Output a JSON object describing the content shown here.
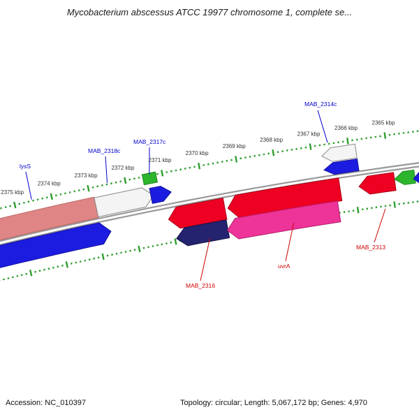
{
  "title": "Mycobacterium abscessus ATCC 19977 chromosome 1, complete se...",
  "status_bar": {
    "accession_label": "Accession: NC_010397",
    "topology_label": "Topology: circular; Length: 5,067,172 bp; Genes: 4,970"
  },
  "chart_data": {
    "type": "genome_map_arc",
    "unit": "kbp",
    "visible_range_kbp": [
      2364.3,
      2376.6
    ],
    "backbone_color": "#999999",
    "ruler": {
      "tick_color": "#2f9e2f",
      "major_tick_interval_kbp": 1,
      "minor_tick_interval_kbp": 0.125,
      "tick_label_suffix": " kbp",
      "labeled_ticks_kbp": [
        2365,
        2366,
        2367,
        2368,
        2369,
        2370,
        2371,
        2372,
        2373,
        2374,
        2375
      ]
    },
    "label_colors": {
      "forward": "#0000cc",
      "reverse": "#cc0000"
    },
    "features": [
      {
        "id": "lysS",
        "label": "lysS",
        "label_color": "#0000cc",
        "start_kbp": 2376.64,
        "end_kbp": 2372.9,
        "direction": "left",
        "offset": 19,
        "thickness": 30,
        "fill": "#e08585",
        "stroke": "#bb6666"
      },
      {
        "id": "blue_cds_left",
        "start_kbp": 2376.64,
        "end_kbp": 2372.65,
        "direction": "right",
        "offset": -19,
        "thickness": 31,
        "fill": "#1c1ce0",
        "stroke": "#12129e"
      },
      {
        "id": "MAB_2318c",
        "label": "MAB_2318c",
        "label_color": "#0000cc",
        "start_kbp": 2372.9,
        "end_kbp": 2371.34,
        "direction": "right",
        "offset": 19,
        "thickness": 28,
        "fill": "#f4f4f4",
        "stroke": "#8a8a8a"
      },
      {
        "id": "green_block_left",
        "start_kbp": 2371.53,
        "end_kbp": 2371.17,
        "direction": "none",
        "offset": 44,
        "thickness": 15,
        "fill": "#2db52d",
        "stroke": "#1d8a1d"
      },
      {
        "id": "MAB_2317c",
        "label": "MAB_2317c",
        "label_color": "#0000cc",
        "start_kbp": 2371.41,
        "end_kbp": 2370.86,
        "direction": "right",
        "offset": 19,
        "thickness": 22,
        "fill": "#1c1ce0",
        "stroke": "#12129e"
      },
      {
        "id": "red_cds_a",
        "start_kbp": 2371.07,
        "end_kbp": 2369.53,
        "direction": "left",
        "offset": -19,
        "thickness": 31,
        "fill": "#ee0022",
        "stroke": "#a80016"
      },
      {
        "id": "MAB_2316",
        "label": "MAB_2316",
        "label_color": "#cc0000",
        "start_kbp": 2370.96,
        "end_kbp": 2369.55,
        "direction": "left",
        "offset": -48,
        "thickness": 26,
        "fill": "#232370",
        "stroke": "#15154a"
      },
      {
        "id": "red_cds_b",
        "start_kbp": 2369.45,
        "end_kbp": 2366.39,
        "direction": "left",
        "offset": -19,
        "thickness": 33,
        "fill": "#ee0022",
        "stroke": "#a80016"
      },
      {
        "id": "uvrA",
        "label": "uvrA",
        "label_color": "#cc0000",
        "start_kbp": 2369.57,
        "end_kbp": 2366.51,
        "direction": "left",
        "offset": -50,
        "thickness": 30,
        "fill": "#ee3399",
        "stroke": "#b3216e"
      },
      {
        "id": "MAB_2314c",
        "label": "MAB_2314c",
        "label_color": "#0000cc",
        "start_kbp": 2366.74,
        "end_kbp": 2365.82,
        "direction": "left",
        "offset": 32,
        "thickness": 20,
        "fill": "#f4f4f4",
        "stroke": "#8a8a8a"
      },
      {
        "id": "blue_cds_mid",
        "start_kbp": 2366.74,
        "end_kbp": 2365.82,
        "direction": "left",
        "offset": 12,
        "thickness": 17,
        "fill": "#1c1ce0",
        "stroke": "#12129e"
      },
      {
        "id": "MAB_2313",
        "label": "MAB_2313",
        "label_color": "#cc0000",
        "start_kbp": 2365.88,
        "end_kbp": 2364.91,
        "direction": "left",
        "offset": -19,
        "thickness": 26,
        "fill": "#ee0022",
        "stroke": "#a80016"
      },
      {
        "id": "green_cds_right",
        "start_kbp": 2364.91,
        "end_kbp": 2364.36,
        "direction": "left",
        "offset": -16,
        "thickness": 19,
        "fill": "#2db52d",
        "stroke": "#1d8a1d"
      },
      {
        "id": "blue_cds_right",
        "start_kbp": 2364.4,
        "end_kbp": 2363.24,
        "direction": "left",
        "offset": -19,
        "thickness": 26,
        "fill": "#1c1ce0",
        "stroke": "#12129e"
      }
    ]
  }
}
